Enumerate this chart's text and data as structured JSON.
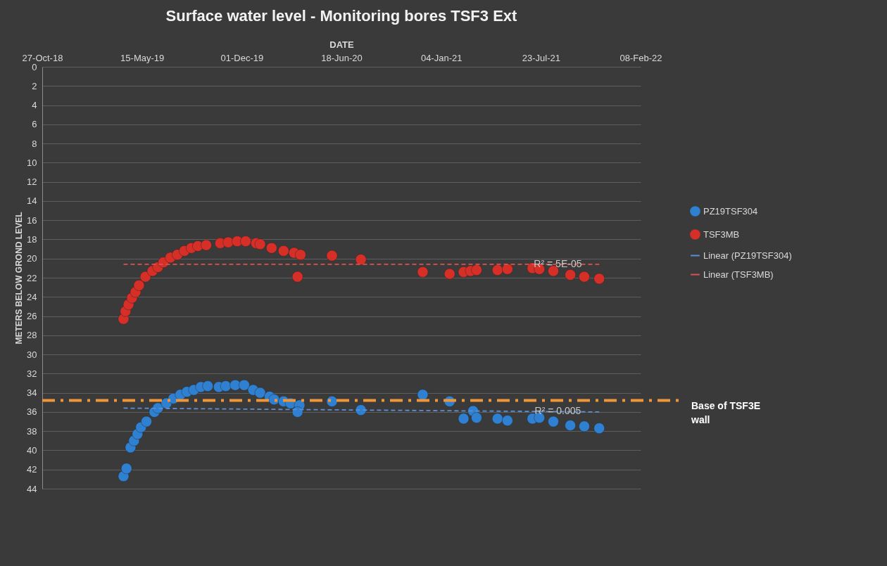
{
  "chart_data": {
    "type": "scatter",
    "title": "Surface water level  - Monitoring bores TSF3 Ext",
    "xlabel": "DATE",
    "ylabel": "METERS BELOW GROND LEVEL",
    "xlim": [
      "2018-10-27",
      "2022-02-08"
    ],
    "xticks": [
      {
        "value": "2018-10-27",
        "label": "27-Oct-18"
      },
      {
        "value": "2019-05-15",
        "label": "15-May-19"
      },
      {
        "value": "2019-12-01",
        "label": "01-Dec-19"
      },
      {
        "value": "2020-06-18",
        "label": "18-Jun-20"
      },
      {
        "value": "2021-01-04",
        "label": "04-Jan-21"
      },
      {
        "value": "2021-07-23",
        "label": "23-Jul-21"
      },
      {
        "value": "2022-02-08",
        "label": "08-Feb-22"
      }
    ],
    "ylim": [
      44,
      0
    ],
    "yticks": [
      0,
      2,
      4,
      6,
      8,
      10,
      12,
      14,
      16,
      18,
      20,
      22,
      24,
      26,
      28,
      30,
      32,
      34,
      36,
      38,
      40,
      42,
      44
    ],
    "grid": "y",
    "legend": "right",
    "series": [
      {
        "name": "PZ19TSF304",
        "color": "#2f80d1",
        "marker": "circle",
        "x": [
          "2019-04-08",
          "2019-04-14",
          "2019-04-22",
          "2019-04-29",
          "2019-05-06",
          "2019-05-13",
          "2019-05-24",
          "2019-06-09",
          "2019-06-16",
          "2019-07-03",
          "2019-07-17",
          "2019-07-31",
          "2019-08-13",
          "2019-08-27",
          "2019-09-10",
          "2019-09-24",
          "2019-10-16",
          "2019-10-30",
          "2019-11-18",
          "2019-12-06",
          "2019-12-24",
          "2020-01-07",
          "2020-01-26",
          "2020-02-04",
          "2020-02-23",
          "2020-03-08",
          "2020-03-26",
          "2020-03-22",
          "2020-05-30",
          "2020-07-27",
          "2020-11-28",
          "2021-01-21",
          "2021-02-18",
          "2021-03-09",
          "2021-03-16",
          "2021-04-27",
          "2021-05-17",
          "2021-07-06",
          "2021-07-20",
          "2021-08-17",
          "2021-09-20",
          "2021-10-18",
          "2021-11-17"
        ],
        "values": [
          42.7,
          41.9,
          39.7,
          39.0,
          38.3,
          37.6,
          37.0,
          36.0,
          35.6,
          35.1,
          34.6,
          34.2,
          33.9,
          33.7,
          33.4,
          33.3,
          33.4,
          33.3,
          33.2,
          33.2,
          33.7,
          34.0,
          34.4,
          34.7,
          34.9,
          35.1,
          35.3,
          36.0,
          34.9,
          35.8,
          34.2,
          34.9,
          36.7,
          35.9,
          36.6,
          36.7,
          36.9,
          36.7,
          36.6,
          37.0,
          37.4,
          37.5,
          37.7
        ]
      },
      {
        "name": "TSF3MB",
        "color": "#d62f28",
        "marker": "circle",
        "x": [
          "2019-04-08",
          "2019-04-12",
          "2019-04-18",
          "2019-04-25",
          "2019-05-02",
          "2019-05-09",
          "2019-05-22",
          "2019-06-05",
          "2019-06-16",
          "2019-06-27",
          "2019-07-11",
          "2019-07-25",
          "2019-08-08",
          "2019-08-22",
          "2019-09-04",
          "2019-09-21",
          "2019-10-19",
          "2019-11-04",
          "2019-11-22",
          "2019-12-09",
          "2019-12-30",
          "2020-01-07",
          "2020-01-30",
          "2020-02-23",
          "2020-03-15",
          "2020-03-28",
          "2020-03-22",
          "2020-05-30",
          "2020-07-27",
          "2020-11-28",
          "2021-01-21",
          "2021-02-18",
          "2021-03-04",
          "2021-03-16",
          "2021-04-27",
          "2021-05-17",
          "2021-07-06",
          "2021-07-20",
          "2021-08-17",
          "2021-09-20",
          "2021-10-18",
          "2021-11-17"
        ],
        "values": [
          26.3,
          25.5,
          24.8,
          24.1,
          23.5,
          22.8,
          21.9,
          21.3,
          20.9,
          20.4,
          19.9,
          19.6,
          19.2,
          18.9,
          18.7,
          18.6,
          18.4,
          18.3,
          18.2,
          18.2,
          18.4,
          18.5,
          18.9,
          19.2,
          19.4,
          19.6,
          21.9,
          19.7,
          20.1,
          21.4,
          21.6,
          21.4,
          21.3,
          21.2,
          21.2,
          21.1,
          21.0,
          21.1,
          21.3,
          21.7,
          21.9,
          22.1
        ]
      },
      {
        "name": "Linear (PZ19TSF304)",
        "type": "line",
        "line_style": "dashed",
        "color": "#5b8fd6",
        "x": [
          "2019-04-08",
          "2021-11-17"
        ],
        "values": [
          35.6,
          36.0
        ]
      },
      {
        "name": "Linear (TSF3MB)",
        "type": "line",
        "line_style": "dashed",
        "color": "#d9534f",
        "x": [
          "2019-04-08",
          "2021-11-17"
        ],
        "values": [
          20.6,
          20.6
        ]
      }
    ],
    "ref_lines": [
      {
        "axis": "y",
        "value": 34.8,
        "label": "Base of TSF3E wall",
        "color": "#f0963a",
        "line_style": "dashed"
      }
    ],
    "annotations": [
      {
        "text": "R² = 5E-05",
        "x": "2021-08-26",
        "y": 20.6
      },
      {
        "text": "R² = 0.005",
        "x": "2021-08-26",
        "y": 35.9
      }
    ]
  }
}
